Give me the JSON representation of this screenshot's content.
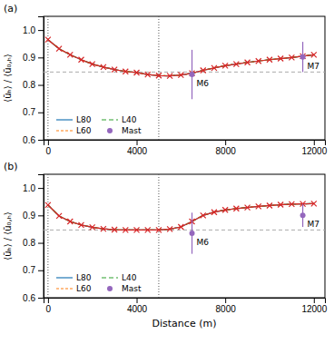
{
  "chart_data": [
    {
      "type": "line",
      "title": "(a)",
      "y_label": "⟨ūₕ⟩ / ⟨ū₀,ₕ⟩",
      "x": [
        0,
        500,
        1000,
        1500,
        2000,
        2500,
        3000,
        3500,
        4000,
        4500,
        5000,
        5500,
        6000,
        6500,
        7000,
        7500,
        8000,
        8500,
        9000,
        9500,
        10000,
        10500,
        11000,
        11500,
        12000
      ],
      "series": [
        {
          "name": "L80",
          "type": "line",
          "line_style": "solid",
          "values": [
            0.965,
            0.932,
            0.91,
            0.892,
            0.876,
            0.865,
            0.856,
            0.849,
            0.845,
            0.838,
            0.834,
            0.833,
            0.836,
            0.843,
            0.853,
            0.862,
            0.87,
            0.876,
            0.882,
            0.887,
            0.892,
            0.896,
            0.9,
            0.905,
            0.91
          ]
        },
        {
          "name": "L60",
          "type": "line",
          "line_style": "dotted",
          "values": [
            0.965,
            0.932,
            0.91,
            0.892,
            0.876,
            0.865,
            0.856,
            0.849,
            0.845,
            0.838,
            0.834,
            0.833,
            0.836,
            0.843,
            0.853,
            0.862,
            0.87,
            0.876,
            0.882,
            0.887,
            0.892,
            0.896,
            0.9,
            0.905,
            0.91
          ]
        },
        {
          "name": "L40",
          "type": "line",
          "line_style": "dashed",
          "values": [
            0.965,
            0.932,
            0.91,
            0.892,
            0.876,
            0.865,
            0.856,
            0.849,
            0.845,
            0.838,
            0.834,
            0.833,
            0.836,
            0.843,
            0.853,
            0.862,
            0.87,
            0.876,
            0.882,
            0.887,
            0.892,
            0.896,
            0.9,
            0.905,
            0.91
          ]
        },
        {
          "type": "line",
          "line_style": "solid",
          "marker": "x",
          "values": [
            0.965,
            0.932,
            0.91,
            0.892,
            0.876,
            0.865,
            0.856,
            0.849,
            0.845,
            0.838,
            0.834,
            0.833,
            0.836,
            0.843,
            0.853,
            0.862,
            0.87,
            0.876,
            0.882,
            0.887,
            0.892,
            0.896,
            0.9,
            0.905,
            0.91
          ]
        },
        {
          "name": "Mast",
          "type": "scatter",
          "marker": "circle",
          "x": [
            6500,
            11500
          ],
          "values": [
            0.838,
            0.902
          ],
          "error_up": [
            0.09,
            0.055
          ],
          "error_down": [
            0.09,
            0.055
          ],
          "labels": [
            "M6",
            "M7"
          ]
        }
      ],
      "hline": 0.847,
      "vlines": [
        0,
        5000
      ],
      "xlim": [
        -200,
        12500
      ],
      "ylim": [
        0.6,
        1.05
      ],
      "xticks": [
        0,
        4000,
        8000,
        12000
      ],
      "yticks": [
        0.6,
        0.7,
        0.8,
        0.9,
        {
          "value": 1.0,
          "label": "1.0"
        }
      ],
      "grid": false,
      "legend": "lower left"
    },
    {
      "type": "line",
      "title": "(b)",
      "x_label": "Distance (m)",
      "y_label": "⟨ūₕ⟩ / ⟨ū₀,ₕ⟩",
      "x": [
        0,
        500,
        1000,
        1500,
        2000,
        2500,
        3000,
        3500,
        4000,
        4500,
        5000,
        5500,
        6000,
        6500,
        7000,
        7500,
        8000,
        8500,
        9000,
        9500,
        10000,
        10500,
        11000,
        11500,
        12000
      ],
      "series": [
        {
          "name": "L80",
          "type": "line",
          "line_style": "solid",
          "values": [
            0.938,
            0.898,
            0.878,
            0.865,
            0.857,
            0.851,
            0.848,
            0.847,
            0.847,
            0.847,
            0.847,
            0.85,
            0.858,
            0.878,
            0.9,
            0.912,
            0.92,
            0.925,
            0.929,
            0.933,
            0.936,
            0.939,
            0.941,
            0.942,
            0.943
          ]
        },
        {
          "name": "L60",
          "type": "line",
          "line_style": "dotted",
          "values": [
            0.938,
            0.898,
            0.878,
            0.865,
            0.857,
            0.851,
            0.848,
            0.847,
            0.847,
            0.847,
            0.847,
            0.85,
            0.858,
            0.878,
            0.9,
            0.912,
            0.92,
            0.925,
            0.929,
            0.933,
            0.936,
            0.939,
            0.941,
            0.942,
            0.943
          ]
        },
        {
          "name": "L40",
          "type": "line",
          "line_style": "dashed",
          "values": [
            0.938,
            0.898,
            0.878,
            0.865,
            0.857,
            0.851,
            0.848,
            0.847,
            0.847,
            0.847,
            0.847,
            0.85,
            0.858,
            0.878,
            0.9,
            0.912,
            0.92,
            0.925,
            0.929,
            0.933,
            0.936,
            0.939,
            0.941,
            0.942,
            0.943
          ]
        },
        {
          "type": "line",
          "line_style": "solid",
          "marker": "x",
          "values": [
            0.938,
            0.898,
            0.878,
            0.865,
            0.857,
            0.851,
            0.848,
            0.847,
            0.847,
            0.847,
            0.847,
            0.85,
            0.858,
            0.878,
            0.9,
            0.912,
            0.92,
            0.925,
            0.929,
            0.933,
            0.936,
            0.939,
            0.941,
            0.942,
            0.943
          ]
        },
        {
          "name": "Mast",
          "type": "scatter",
          "marker": "circle",
          "x": [
            6500,
            11500
          ],
          "values": [
            0.835,
            0.9
          ],
          "error_up": [
            0.075,
            0.042
          ],
          "error_down": [
            0.075,
            0.042
          ],
          "labels": [
            "M6",
            "M7"
          ]
        }
      ],
      "hline": 0.847,
      "vlines": [
        0,
        5000
      ],
      "xlim": [
        -200,
        12500
      ],
      "ylim": [
        0.6,
        1.05
      ],
      "xticks": [
        0,
        4000,
        8000,
        12000
      ],
      "yticks": [
        0.6,
        0.7,
        0.8,
        0.9,
        {
          "value": 1.0,
          "label": "1.0"
        }
      ],
      "grid": false,
      "legend": "lower left"
    }
  ]
}
